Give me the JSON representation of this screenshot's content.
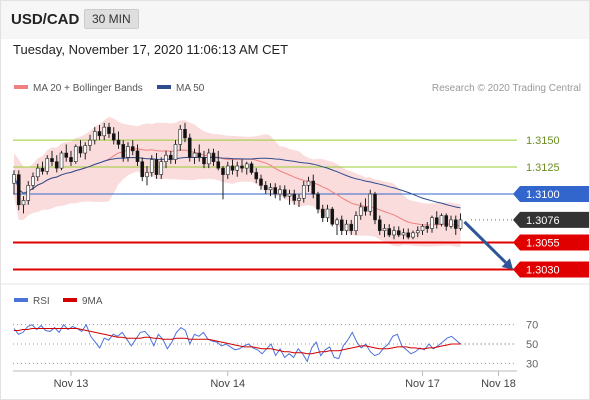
{
  "header": {
    "symbol": "USD/CAD",
    "timeframe": "30 MIN",
    "datetime": "Tuesday, November 17, 2020 11:06:13 AM CET",
    "copyright": "Research © 2020 Trading Central"
  },
  "colors": {
    "candle_up": "#ffffff",
    "candle_down": "#111111",
    "bollinger_fill": "#f9d6d6",
    "ma20": "#f08080",
    "ma50": "#2e4d8f",
    "resistance": "#9acd32",
    "pivot": "#3366cc",
    "support": "#e00000",
    "last_price": "#333333",
    "arrow": "#2f5597",
    "rsi": "#4a72d8",
    "rsi_ma": "#d40000"
  },
  "chart_data": [
    {
      "type": "candlestick",
      "legend": [
        {
          "label": "MA 20 + Bollinger Bands",
          "color": "#f08080"
        },
        {
          "label": "MA 50",
          "color": "#2e4d8f"
        }
      ],
      "ylim": [
        1.3023,
        1.319
      ],
      "x_ticks": [
        {
          "label": "Nov 13",
          "index": 12
        },
        {
          "label": "Nov 14",
          "index": 45
        },
        {
          "label": "Nov 17",
          "index": 86
        },
        {
          "label": "Nov 18",
          "index": 102
        }
      ],
      "levels": [
        {
          "value": 1.315,
          "label": "1.3150",
          "kind": "resistance"
        },
        {
          "value": 1.3125,
          "label": "1.3125",
          "kind": "resistance"
        },
        {
          "value": 1.31,
          "label": "1.3100",
          "kind": "pivot"
        },
        {
          "value": 1.3076,
          "label": "1.3076",
          "kind": "last"
        },
        {
          "value": 1.3055,
          "label": "1.3055",
          "kind": "support"
        },
        {
          "value": 1.303,
          "label": "1.3030",
          "kind": "support"
        }
      ],
      "candles": [
        [
          1.311,
          1.3122,
          1.31,
          1.3118
        ],
        [
          1.3118,
          1.3122,
          1.3085,
          1.309
        ],
        [
          1.309,
          1.3098,
          1.3082,
          1.3094
        ],
        [
          1.3094,
          1.3112,
          1.309,
          1.3108
        ],
        [
          1.3108,
          1.312,
          1.3104,
          1.3116
        ],
        [
          1.3116,
          1.3128,
          1.3112,
          1.3124
        ],
        [
          1.3124,
          1.313,
          1.3118,
          1.3121
        ],
        [
          1.3121,
          1.3136,
          1.3118,
          1.3133
        ],
        [
          1.3133,
          1.314,
          1.3126,
          1.313
        ],
        [
          1.313,
          1.3136,
          1.312,
          1.3124
        ],
        [
          1.3124,
          1.314,
          1.3122,
          1.3138
        ],
        [
          1.3138,
          1.3146,
          1.313,
          1.3134
        ],
        [
          1.3134,
          1.314,
          1.3126,
          1.313
        ],
        [
          1.313,
          1.3146,
          1.3128,
          1.3144
        ],
        [
          1.3144,
          1.315,
          1.3134,
          1.3138
        ],
        [
          1.3138,
          1.3148,
          1.3132,
          1.3145
        ],
        [
          1.3145,
          1.3155,
          1.314,
          1.315
        ],
        [
          1.315,
          1.3162,
          1.3146,
          1.3158
        ],
        [
          1.3158,
          1.3164,
          1.315,
          1.3154
        ],
        [
          1.3154,
          1.3166,
          1.315,
          1.3162
        ],
        [
          1.3162,
          1.3166,
          1.3152,
          1.3156
        ],
        [
          1.3156,
          1.3162,
          1.3146,
          1.315
        ],
        [
          1.315,
          1.3158,
          1.3142,
          1.3146
        ],
        [
          1.3146,
          1.315,
          1.313,
          1.3134
        ],
        [
          1.3134,
          1.3148,
          1.313,
          1.3144
        ],
        [
          1.3144,
          1.315,
          1.3136,
          1.314
        ],
        [
          1.314,
          1.3146,
          1.3126,
          1.313
        ],
        [
          1.313,
          1.3134,
          1.3112,
          1.3116
        ],
        [
          1.3116,
          1.3126,
          1.3108,
          1.312
        ],
        [
          1.312,
          1.3136,
          1.3116,
          1.3132
        ],
        [
          1.3132,
          1.3138,
          1.3114,
          1.3118
        ],
        [
          1.3118,
          1.3134,
          1.3114,
          1.313
        ],
        [
          1.313,
          1.314,
          1.3124,
          1.3136
        ],
        [
          1.3136,
          1.314,
          1.3128,
          1.3132
        ],
        [
          1.3132,
          1.315,
          1.3128,
          1.3146
        ],
        [
          1.3146,
          1.3164,
          1.314,
          1.316
        ],
        [
          1.316,
          1.3166,
          1.3148,
          1.3152
        ],
        [
          1.3152,
          1.3156,
          1.313,
          1.3134
        ],
        [
          1.3134,
          1.3142,
          1.3128,
          1.3138
        ],
        [
          1.3138,
          1.3146,
          1.313,
          1.3134
        ],
        [
          1.3134,
          1.314,
          1.3124,
          1.3128
        ],
        [
          1.3128,
          1.3142,
          1.3124,
          1.3138
        ],
        [
          1.3138,
          1.3142,
          1.3126,
          1.313
        ],
        [
          1.313,
          1.314,
          1.3122,
          1.3124
        ],
        [
          1.3124,
          1.3126,
          1.3095,
          1.3118
        ],
        [
          1.3118,
          1.313,
          1.3114,
          1.3126
        ],
        [
          1.3126,
          1.3132,
          1.3118,
          1.3122
        ],
        [
          1.3122,
          1.313,
          1.3116,
          1.3126
        ],
        [
          1.3126,
          1.3132,
          1.312,
          1.3124
        ],
        [
          1.3124,
          1.313,
          1.3118,
          1.3128
        ],
        [
          1.3128,
          1.313,
          1.3118,
          1.312
        ],
        [
          1.312,
          1.3124,
          1.311,
          1.3114
        ],
        [
          1.3114,
          1.3118,
          1.3104,
          1.3108
        ],
        [
          1.3108,
          1.3112,
          1.31,
          1.3104
        ],
        [
          1.3104,
          1.311,
          1.3098,
          1.3106
        ],
        [
          1.3106,
          1.311,
          1.3096,
          1.31
        ],
        [
          1.31,
          1.3108,
          1.3094,
          1.3104
        ],
        [
          1.3104,
          1.3108,
          1.3096,
          1.3098
        ],
        [
          1.3098,
          1.3104,
          1.309,
          1.31
        ],
        [
          1.31,
          1.3104,
          1.309,
          1.3094
        ],
        [
          1.3094,
          1.31,
          1.3088,
          1.3096
        ],
        [
          1.3096,
          1.3112,
          1.3092,
          1.3108
        ],
        [
          1.3108,
          1.3116,
          1.3102,
          1.3112
        ],
        [
          1.3112,
          1.3118,
          1.3096,
          1.31
        ],
        [
          1.31,
          1.3102,
          1.3082,
          1.3086
        ],
        [
          1.3086,
          1.309,
          1.3074,
          1.3078
        ],
        [
          1.3078,
          1.309,
          1.3074,
          1.3086
        ],
        [
          1.3086,
          1.3088,
          1.307,
          1.3072
        ],
        [
          1.3072,
          1.3078,
          1.3062,
          1.3076
        ],
        [
          1.3076,
          1.308,
          1.3062,
          1.3066
        ],
        [
          1.3066,
          1.3076,
          1.3062,
          1.3072
        ],
        [
          1.3072,
          1.3076,
          1.3062,
          1.3066
        ],
        [
          1.3066,
          1.3084,
          1.3062,
          1.308
        ],
        [
          1.308,
          1.3092,
          1.3076,
          1.3088
        ],
        [
          1.3088,
          1.3096,
          1.308,
          1.3084
        ],
        [
          1.3084,
          1.3104,
          1.308,
          1.31
        ],
        [
          1.31,
          1.3102,
          1.3072,
          1.3076
        ],
        [
          1.3076,
          1.308,
          1.3062,
          1.3066
        ],
        [
          1.3066,
          1.3072,
          1.306,
          1.3068
        ],
        [
          1.3068,
          1.3072,
          1.306,
          1.3062
        ],
        [
          1.3062,
          1.307,
          1.3058,
          1.3066
        ],
        [
          1.3066,
          1.307,
          1.306,
          1.3062
        ],
        [
          1.3062,
          1.3068,
          1.3058,
          1.3064
        ],
        [
          1.3064,
          1.3068,
          1.3058,
          1.306
        ],
        [
          1.306,
          1.3066,
          1.3058,
          1.3064
        ],
        [
          1.3064,
          1.307,
          1.306,
          1.3066
        ],
        [
          1.3066,
          1.3072,
          1.3062,
          1.307
        ],
        [
          1.307,
          1.3074,
          1.3064,
          1.3068
        ],
        [
          1.3068,
          1.308,
          1.3064,
          1.3078
        ],
        [
          1.3078,
          1.3084,
          1.3068,
          1.3072
        ],
        [
          1.3072,
          1.3082,
          1.307,
          1.308
        ],
        [
          1.308,
          1.3082,
          1.3066,
          1.307
        ],
        [
          1.307,
          1.308,
          1.3068,
          1.3076
        ],
        [
          1.3076,
          1.308,
          1.3062,
          1.3068
        ],
        [
          1.3068,
          1.3082,
          1.3066,
          1.3076
        ]
      ]
    },
    {
      "type": "line",
      "legend": [
        {
          "label": "RSI",
          "color": "#4a72d8"
        },
        {
          "label": "9MA",
          "color": "#d40000"
        }
      ],
      "ylim": [
        20,
        80
      ],
      "y_ticks": [
        70,
        50,
        30
      ],
      "series": [
        {
          "name": "RSI",
          "values": [
            66,
            60,
            62,
            68,
            70,
            65,
            69,
            64,
            63,
            67,
            62,
            70,
            65,
            68,
            66,
            63,
            70,
            58,
            52,
            46,
            56,
            54,
            60,
            58,
            62,
            55,
            48,
            55,
            62,
            63,
            58,
            48,
            60,
            55,
            45,
            52,
            62,
            67,
            64,
            50,
            60,
            58,
            62,
            55,
            53,
            52,
            48,
            50,
            47,
            44,
            45,
            48,
            50,
            46,
            44,
            40,
            45,
            50,
            38,
            45,
            36,
            40,
            36,
            45,
            40,
            32,
            46,
            52,
            38,
            44,
            47,
            36,
            35,
            48,
            54,
            62,
            52,
            46,
            50,
            42,
            38,
            40,
            46,
            50,
            58,
            60,
            48,
            44,
            40,
            42,
            46,
            44,
            50,
            45,
            48,
            52,
            56,
            58,
            54,
            50
          ]
        },
        {
          "name": "9MA",
          "values": [
            64,
            64,
            65,
            65,
            66,
            66,
            66,
            66,
            66,
            66,
            66,
            66,
            66,
            66,
            66,
            65,
            64,
            63,
            62,
            61,
            60,
            59,
            58,
            57,
            57,
            56,
            56,
            56,
            56,
            57,
            57,
            56,
            56,
            55,
            55,
            55,
            56,
            56,
            56,
            55,
            55,
            55,
            55,
            55,
            54,
            53,
            52,
            51,
            50,
            49,
            48,
            47,
            47,
            47,
            46,
            45,
            45,
            45,
            44,
            43,
            42,
            42,
            41,
            41,
            41,
            40,
            40,
            41,
            42,
            42,
            43,
            43,
            43,
            44,
            45,
            46,
            47,
            48,
            48,
            47,
            46,
            45,
            45,
            45,
            46,
            47,
            47,
            47,
            46,
            46,
            45,
            45,
            46,
            46,
            47,
            48,
            49,
            50,
            50,
            50
          ]
        }
      ]
    }
  ]
}
